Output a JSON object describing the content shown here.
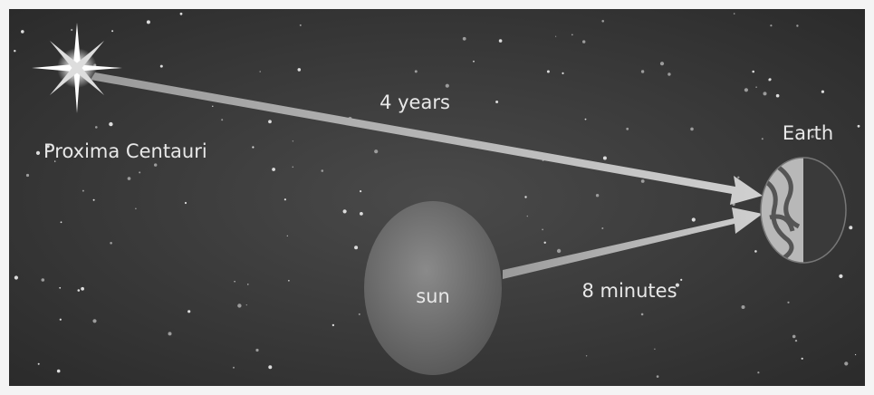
{
  "nodes": [
    {
      "label": "Proxima Centauri"
    },
    {
      "label": "Earth"
    },
    {
      "label": "sun"
    }
  ],
  "edges": [
    {
      "label": "4 years"
    },
    {
      "label": "8 minutes"
    }
  ]
}
